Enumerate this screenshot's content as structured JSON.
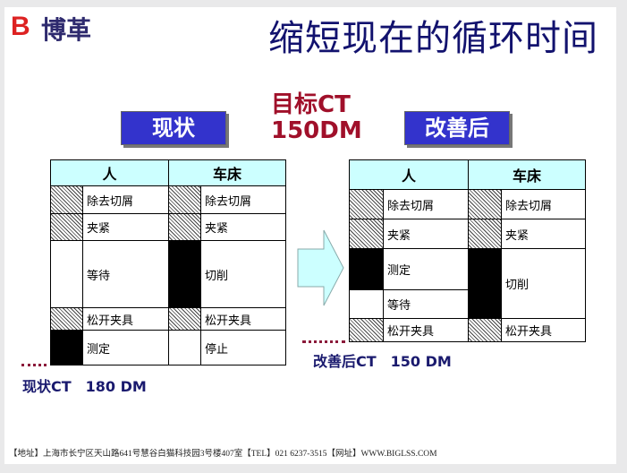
{
  "logo": {
    "mark": "B",
    "text": "博革"
  },
  "title": "缩短现在的循环时间",
  "target": {
    "line1": "目标CT",
    "line2": "150DM"
  },
  "current": {
    "label": "现状",
    "headers": [
      "人",
      "车床"
    ],
    "person": [
      "除去切屑",
      "夹紧",
      "等待",
      "松开夹具",
      "测定"
    ],
    "machine": [
      "除去切屑",
      "夹紧",
      "切削",
      "松开夹具",
      "停止"
    ],
    "ct": "现状CT　180 DM"
  },
  "improved": {
    "label": "改善后",
    "headers": [
      "人",
      "车床"
    ],
    "person": [
      "除去切屑",
      "夹紧",
      "测定",
      "等待",
      "松开夹具"
    ],
    "machine": [
      "除去切屑",
      "夹紧",
      "切削",
      "松开夹具"
    ],
    "ct": "改善后CT　150 DM"
  },
  "footer": "【地址】上海市长宁区天山路641号慧谷白猫科技园3号楼407室【TEL】021 6237-3515【网址】WWW.BIGLSS.COM",
  "colors": {
    "accent": "#3333cc",
    "target": "#a0102a",
    "header": "#ccffff"
  }
}
